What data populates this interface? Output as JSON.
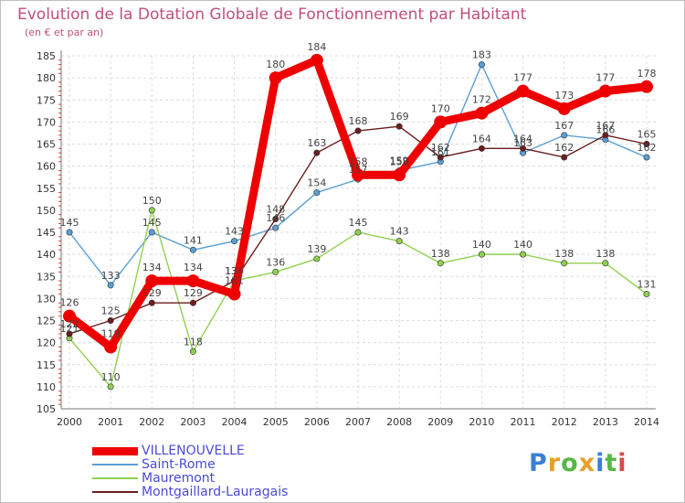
{
  "title": "Evolution de la Dotation Globale de Fonctionnement par Habitant",
  "subtitle": "(en € et par an)",
  "logo": "Proxiti",
  "chart_data": {
    "type": "line",
    "title": "Evolution de la Dotation Globale de Fonctionnement par Habitant",
    "subtitle": "(en € et par an)",
    "xlabel": "",
    "ylabel": "",
    "x": [
      2000,
      2001,
      2002,
      2003,
      2004,
      2005,
      2006,
      2007,
      2008,
      2009,
      2010,
      2011,
      2012,
      2013,
      2014
    ],
    "ylim": [
      105,
      185
    ],
    "yticks": [
      105,
      110,
      115,
      120,
      125,
      130,
      135,
      140,
      145,
      150,
      155,
      160,
      165,
      170,
      175,
      180,
      185
    ],
    "grid": true,
    "legend_position": "bottom-left",
    "series": [
      {
        "name": "Saint-Rome",
        "color": "#5a9fd4",
        "values": [
          145,
          133,
          145,
          141,
          143,
          146,
          154,
          157,
          159,
          161,
          183,
          163,
          167,
          166,
          162
        ]
      },
      {
        "name": "Mauremont",
        "color": "#8fd14f",
        "values": [
          121,
          110,
          150,
          118,
          134,
          136,
          139,
          145,
          143,
          138,
          140,
          140,
          138,
          138,
          131
        ]
      },
      {
        "name": "Montgaillard-Lauragais",
        "color": "#6b1e1e",
        "values": [
          122,
          125,
          129,
          129,
          134,
          148,
          163,
          168,
          169,
          162,
          164,
          164,
          162,
          167,
          165
        ]
      },
      {
        "name": "VILLENOUVELLE",
        "color": "#ee0000",
        "values": [
          126,
          119,
          134,
          134,
          131,
          180,
          184,
          158,
          158,
          170,
          172,
          177,
          173,
          177,
          178
        ]
      }
    ]
  }
}
